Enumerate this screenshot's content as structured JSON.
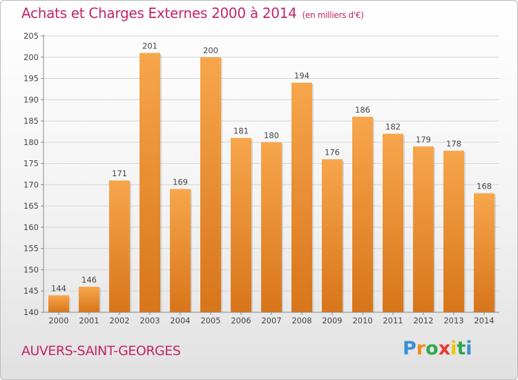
{
  "title": "Achats et Charges Externes 2000 à 2014",
  "subtitle": "(en milliers d'€)",
  "commune": "AUVERS-SAINT-GEORGES",
  "logo": {
    "letters": [
      "P",
      "r",
      "o",
      "x",
      "i",
      "t",
      "i"
    ],
    "colors": [
      "#3a8fd4",
      "#f08c1a",
      "#2fa84f",
      "#e63b2e",
      "#f2c500",
      "#2fa84f",
      "#3a8fd4"
    ]
  },
  "colors": {
    "bar_top": "#f7a64c",
    "bar_bottom": "#d8751a",
    "title": "#c2246a"
  },
  "chart_data": {
    "type": "bar",
    "categories": [
      "2000",
      "2001",
      "2002",
      "2003",
      "2004",
      "2005",
      "2006",
      "2007",
      "2008",
      "2009",
      "2010",
      "2011",
      "2012",
      "2013",
      "2014"
    ],
    "values": [
      144,
      146,
      171,
      201,
      169,
      200,
      181,
      180,
      194,
      176,
      186,
      182,
      179,
      178,
      168
    ],
    "ylim": [
      140,
      205
    ],
    "yticks": [
      140,
      145,
      150,
      155,
      160,
      165,
      170,
      175,
      180,
      185,
      190,
      195,
      200,
      205
    ],
    "grid": true,
    "data_labels": true
  }
}
